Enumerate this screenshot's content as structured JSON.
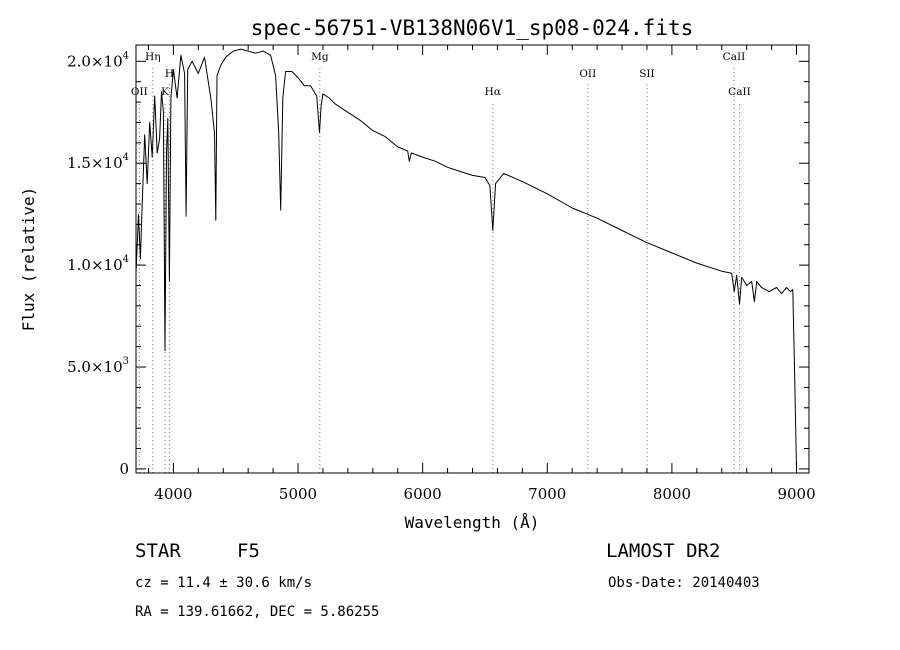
{
  "chart_data": {
    "type": "line",
    "title": "spec-56751-VB138N06V1_sp08-024.fits",
    "xlabel": "Wavelength (Å)",
    "ylabel": "Flux (relative)",
    "xlim": [
      3700,
      9100
    ],
    "ylim": [
      -200,
      20800
    ],
    "x_ticks": [
      4000,
      5000,
      6000,
      7000,
      8000,
      9000
    ],
    "y_ticks": [
      {
        "value": 0,
        "mantissa": "0",
        "exp": ""
      },
      {
        "value": 5000,
        "mantissa": "5.0×10",
        "exp": "3"
      },
      {
        "value": 10000,
        "mantissa": "1.0×10",
        "exp": "4"
      },
      {
        "value": 15000,
        "mantissa": "1.5×10",
        "exp": "4"
      },
      {
        "value": 20000,
        "mantissa": "2.0×10",
        "exp": "4"
      }
    ],
    "series": [
      {
        "x": [
          3700,
          3720,
          3735,
          3750,
          3770,
          3790,
          3810,
          3830,
          3850,
          3870,
          3889,
          3905,
          3920,
          3933,
          3945,
          3955,
          3968,
          3980,
          4000,
          4030,
          4060,
          4090,
          4102,
          4115,
          4150,
          4200,
          4250,
          4300,
          4330,
          4340,
          4350,
          4380,
          4420,
          4480,
          4540,
          4600,
          4660,
          4720,
          4780,
          4820,
          4845,
          4861,
          4878,
          4900,
          4950,
          5000,
          5050,
          5100,
          5150,
          5172,
          5185,
          5200,
          5250,
          5300,
          5350,
          5400,
          5500,
          5600,
          5700,
          5800,
          5880,
          5893,
          5910,
          6000,
          6100,
          6200,
          6300,
          6400,
          6500,
          6540,
          6563,
          6585,
          6650,
          6800,
          7000,
          7200,
          7400,
          7600,
          7800,
          8000,
          8200,
          8400,
          8480,
          8500,
          8520,
          8542,
          8560,
          8600,
          8640,
          8662,
          8680,
          8720,
          8780,
          8840,
          8880,
          8920,
          8950,
          8970,
          8985,
          9000
        ],
        "y": [
          9600,
          12500,
          10300,
          13000,
          16400,
          14000,
          17000,
          15300,
          18300,
          15500,
          16200,
          18500,
          17500,
          5800,
          15500,
          17200,
          9200,
          18200,
          19600,
          18200,
          20300,
          19400,
          12400,
          19600,
          20000,
          19400,
          20200,
          18200,
          16500,
          12200,
          19300,
          19800,
          20200,
          20500,
          20600,
          20500,
          20400,
          20500,
          20300,
          19300,
          16500,
          12700,
          18200,
          19500,
          19500,
          19200,
          18800,
          18800,
          18300,
          16500,
          17800,
          18400,
          18200,
          17900,
          17700,
          17500,
          17100,
          16600,
          16300,
          15800,
          15600,
          15100,
          15500,
          15300,
          15100,
          14800,
          14600,
          14400,
          14300,
          13900,
          11700,
          14000,
          14500,
          14100,
          13500,
          12800,
          12300,
          11700,
          11100,
          10600,
          10100,
          9700,
          9600,
          8700,
          9500,
          8100,
          9400,
          9000,
          9200,
          8200,
          9200,
          8900,
          8700,
          8900,
          8600,
          8900,
          8700,
          8800,
          4500,
          0
        ]
      }
    ],
    "lines": [
      {
        "label": "OII",
        "sup": "",
        "x": 3727,
        "row": 2
      },
      {
        "label": "H",
        "sup": "η",
        "x": 3835,
        "row": 0
      },
      {
        "label": "K",
        "sup": "",
        "x": 3933,
        "row": 2
      },
      {
        "label": "H",
        "sup": "",
        "x": 3968,
        "row": 1
      },
      {
        "label": "Mg",
        "sup": "",
        "x": 5175,
        "row": 0
      },
      {
        "label": "H",
        "sup": "α",
        "x": 6563,
        "row": 2
      },
      {
        "label": "OII",
        "sup": "",
        "x": 7325,
        "row": 1
      },
      {
        "label": "SII",
        "sup": "",
        "x": 7800,
        "row": 1
      },
      {
        "label": "CaII",
        "sup": "",
        "x": 8498,
        "row": 0
      },
      {
        "label": "CaII",
        "sup": "",
        "x": 8542,
        "row": 2
      }
    ],
    "grid": false
  },
  "info": {
    "obj_class": "STAR",
    "subclass": "F5",
    "survey": "LAMOST DR2",
    "cz": "cz = 11.4 ± 30.6 km/s",
    "obs_date": "Obs-Date: 20140403",
    "coords": "RA = 139.61662, DEC =   5.86255"
  }
}
